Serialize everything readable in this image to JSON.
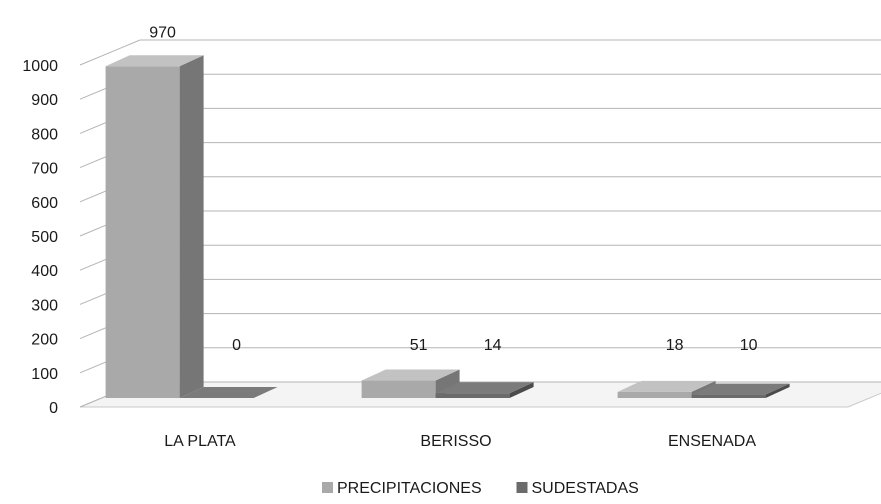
{
  "chart_data": {
    "type": "bar",
    "style": "3d-clustered",
    "categories": [
      "LA PLATA",
      "BERISSO",
      "ENSENADA"
    ],
    "series": [
      {
        "name": "PRECIPITACIONES",
        "values": [
          970,
          51,
          18
        ],
        "color": "#a9a9a9"
      },
      {
        "name": "SUDESTADAS",
        "values": [
          0,
          14,
          10
        ],
        "color": "#6b6b6b"
      }
    ],
    "ylim": [
      0,
      1000
    ],
    "yticks": [
      0,
      100,
      200,
      300,
      400,
      500,
      600,
      700,
      800,
      900,
      1000
    ],
    "grid": true,
    "legend_position": "bottom"
  }
}
